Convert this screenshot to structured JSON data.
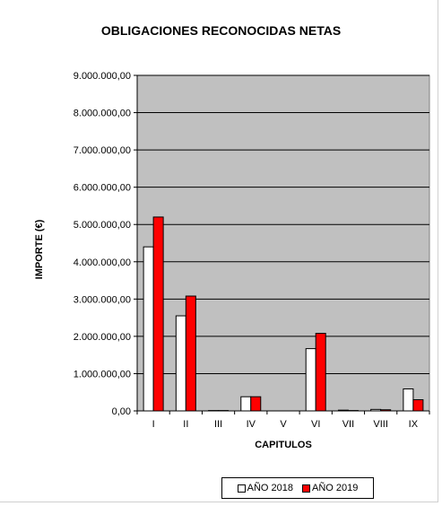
{
  "chart_data": {
    "type": "bar",
    "title": "OBLIGACIONES RECONOCIDAS NETAS",
    "xlabel": "CAPITULOS",
    "ylabel": "IMPORTE (€)",
    "categories": [
      "I",
      "II",
      "III",
      "IV",
      "V",
      "VI",
      "VII",
      "VIII",
      "IX"
    ],
    "ylim": [
      0,
      9000000
    ],
    "yticks": [
      "0,00",
      "1.000.000,00",
      "2.000.000,00",
      "3.000.000,00",
      "4.000.000,00",
      "5.000.000,00",
      "6.000.000,00",
      "7.000.000,00",
      "8.000.000,00",
      "9.000.000,00"
    ],
    "grid": true,
    "legend_position": "bottom",
    "plot_background": "#c0c0c0",
    "series": [
      {
        "name": "AÑO 2018",
        "color": "#ffffff",
        "values": [
          4400000,
          2550000,
          10000,
          380000,
          0,
          1670000,
          20000,
          40000,
          590000
        ]
      },
      {
        "name": "AÑO 2019",
        "color": "#ff0000",
        "values": [
          5200000,
          3080000,
          10000,
          380000,
          0,
          2080000,
          10000,
          30000,
          300000
        ]
      }
    ]
  }
}
